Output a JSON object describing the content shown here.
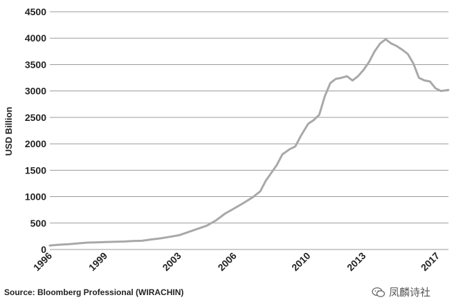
{
  "chart_data": {
    "type": "line",
    "title": "",
    "xlabel": "",
    "ylabel": "USD Billion",
    "x_ticks": [
      "1996",
      "1999",
      "2003",
      "2006",
      "2010",
      "2013",
      "2017"
    ],
    "y_ticks": [
      "0",
      "500",
      "1000",
      "1500",
      "2000",
      "2500",
      "3000",
      "3500",
      "4000",
      "4500"
    ],
    "xlim": [
      1996.0,
      2017.6
    ],
    "ylim": [
      0,
      4500
    ],
    "grid": true,
    "series": [
      {
        "values": [
          [
            1996.0,
            75
          ],
          [
            1996.5,
            90
          ],
          [
            1997.0,
            100
          ],
          [
            1997.5,
            115
          ],
          [
            1998.0,
            130
          ],
          [
            1998.5,
            135
          ],
          [
            1999.0,
            140
          ],
          [
            1999.5,
            145
          ],
          [
            2000.0,
            150
          ],
          [
            2000.5,
            160
          ],
          [
            2001.0,
            165
          ],
          [
            2001.5,
            190
          ],
          [
            2002.0,
            210
          ],
          [
            2002.5,
            240
          ],
          [
            2003.0,
            270
          ],
          [
            2003.5,
            330
          ],
          [
            2004.0,
            390
          ],
          [
            2004.5,
            450
          ],
          [
            2005.0,
            550
          ],
          [
            2005.5,
            680
          ],
          [
            2006.0,
            780
          ],
          [
            2006.5,
            880
          ],
          [
            2007.0,
            990
          ],
          [
            2007.4,
            1100
          ],
          [
            2007.7,
            1300
          ],
          [
            2008.0,
            1450
          ],
          [
            2008.3,
            1600
          ],
          [
            2008.6,
            1800
          ],
          [
            2009.0,
            1900
          ],
          [
            2009.3,
            1950
          ],
          [
            2009.6,
            2150
          ],
          [
            2010.0,
            2380
          ],
          [
            2010.3,
            2450
          ],
          [
            2010.6,
            2550
          ],
          [
            2010.9,
            2900
          ],
          [
            2011.2,
            3150
          ],
          [
            2011.5,
            3230
          ],
          [
            2011.8,
            3250
          ],
          [
            2012.1,
            3280
          ],
          [
            2012.4,
            3200
          ],
          [
            2012.7,
            3280
          ],
          [
            2013.0,
            3400
          ],
          [
            2013.3,
            3550
          ],
          [
            2013.6,
            3750
          ],
          [
            2013.9,
            3900
          ],
          [
            2014.2,
            3980
          ],
          [
            2014.5,
            3900
          ],
          [
            2014.8,
            3850
          ],
          [
            2015.1,
            3780
          ],
          [
            2015.4,
            3700
          ],
          [
            2015.7,
            3520
          ],
          [
            2016.0,
            3250
          ],
          [
            2016.3,
            3200
          ],
          [
            2016.6,
            3180
          ],
          [
            2016.9,
            3050
          ],
          [
            2017.2,
            3000
          ],
          [
            2017.6,
            3020
          ]
        ]
      }
    ]
  },
  "footer": {
    "source": "Source: Bloomberg Professional (WIRACHIN)",
    "watermark": "凤麟诗社"
  }
}
